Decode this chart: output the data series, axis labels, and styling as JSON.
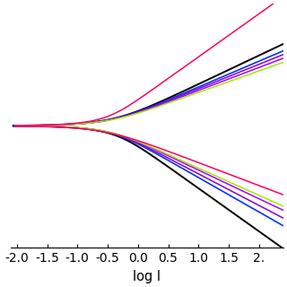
{
  "xlabel": "log I",
  "xlim": [
    -2.1,
    2.4
  ],
  "ylim_plot": [
    -0.85,
    0.85
  ],
  "background_color": "#ffffff",
  "curves": [
    {
      "color": "#000000",
      "ba": 0.2,
      "bc": 0.3,
      "logIcorr": -0.45,
      "Ecorr": 0.0,
      "lw": 1.4,
      "scale": 1.0
    },
    {
      "color": "#0033ff",
      "ba": 0.18,
      "bc": 0.24,
      "logIcorr": -0.5,
      "Ecorr": 0.0,
      "lw": 1.2,
      "scale": 1.0
    },
    {
      "color": "#8800cc",
      "ba": 0.17,
      "bc": 0.22,
      "logIcorr": -0.52,
      "Ecorr": 0.0,
      "lw": 1.1,
      "scale": 1.0
    },
    {
      "color": "#aa00ff",
      "ba": 0.16,
      "bc": 0.2,
      "logIcorr": -0.54,
      "Ecorr": 0.0,
      "lw": 1.1,
      "scale": 1.0
    },
    {
      "color": "#99ee00",
      "ba": 0.15,
      "bc": 0.19,
      "logIcorr": -0.55,
      "Ecorr": 0.0,
      "lw": 1.1,
      "scale": 1.0
    },
    {
      "color": "#ff0066",
      "ba": 0.3,
      "bc": 0.16,
      "logIcorr": -0.6,
      "Ecorr": 0.0,
      "lw": 1.1,
      "scale": 1.0
    }
  ],
  "tick_fontsize": 8.5,
  "label_fontsize": 10.5,
  "xticks": [
    -2.0,
    -1.5,
    -1.0,
    -0.5,
    0.0,
    0.5,
    1.0,
    1.5,
    2.0
  ],
  "xticklabels": [
    "-2.0",
    "-1.5",
    "-1.0",
    "-0.5",
    "0.0",
    "0.5",
    "1.0",
    "1.5",
    "2."
  ]
}
